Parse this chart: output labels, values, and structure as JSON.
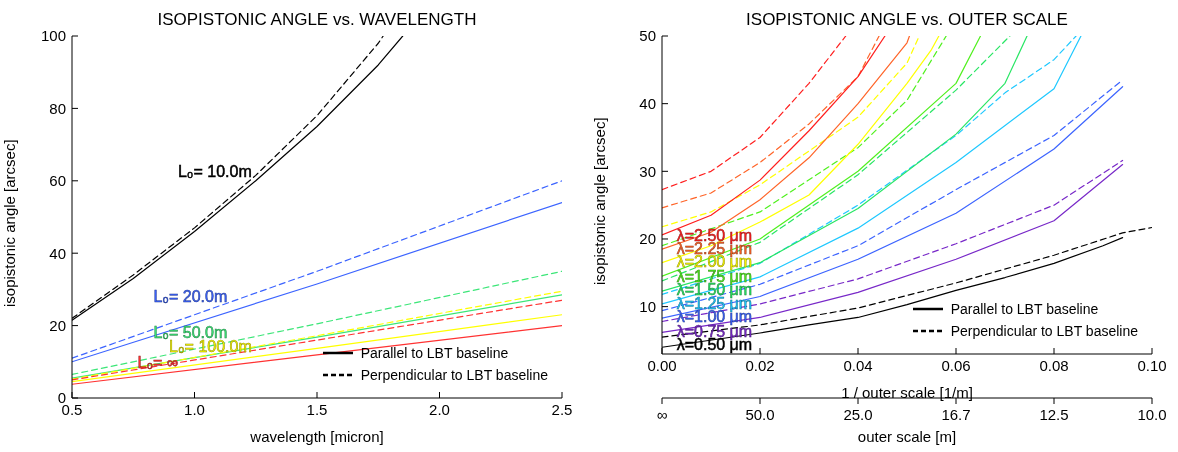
{
  "chart_data": [
    {
      "type": "line",
      "title": "ISOPISTONIC ANGLE vs. WAVELENGTH",
      "xlabel": "wavelength [micron]",
      "ylabel": "isopistonic angle [arcsec]",
      "xlim": [
        0.5,
        2.5
      ],
      "xticks": [
        {
          "value": 0.5,
          "label": "0.5"
        },
        {
          "value": 1,
          "label": "1.0"
        },
        {
          "value": 1.5,
          "label": "1.5"
        },
        {
          "value": 2,
          "label": "2.0"
        },
        {
          "value": 2.5,
          "label": "2.5"
        }
      ],
      "ylim": [
        0,
        100
      ],
      "yticks": [
        0,
        20,
        40,
        60,
        80,
        100
      ],
      "grid": false,
      "series": [
        {
          "color": "#000000",
          "line_style": "solid",
          "x": [
            0.5,
            0.75,
            1.0,
            1.25,
            1.5,
            1.75,
            1.85
          ],
          "values": [
            21.5,
            33,
            46,
            60,
            75,
            92,
            100
          ]
        },
        {
          "color": "#000000",
          "line_style": "dashed",
          "x": [
            0.5,
            0.75,
            1.0,
            1.25,
            1.5,
            1.75,
            1.77
          ],
          "values": [
            22,
            34,
            47,
            61.5,
            78,
            98,
            100
          ]
        },
        {
          "color": "#3c64ff",
          "line_style": "solid",
          "x": [
            0.5,
            1.5,
            2.5
          ],
          "values": [
            10,
            31.5,
            54
          ]
        },
        {
          "color": "#3c64ff",
          "line_style": "dashed",
          "x": [
            0.5,
            1.5,
            2.5
          ],
          "values": [
            11,
            35,
            60
          ]
        },
        {
          "color": "#3ce678",
          "line_style": "solid",
          "x": [
            0.5,
            1.5,
            2.5
          ],
          "values": [
            5.5,
            16.8,
            28.5
          ]
        },
        {
          "color": "#3ce678",
          "line_style": "dashed",
          "x": [
            0.5,
            1.5,
            2.5
          ],
          "values": [
            6.5,
            20.5,
            35
          ]
        },
        {
          "color": "#ffff00",
          "line_style": "solid",
          "x": [
            0.5,
            1.5,
            2.5
          ],
          "values": [
            4.5,
            13.7,
            23
          ]
        },
        {
          "color": "#ffff00",
          "line_style": "dashed",
          "x": [
            0.5,
            1.5,
            2.5
          ],
          "values": [
            5.2,
            17.2,
            29.5
          ]
        },
        {
          "color": "#ff3232",
          "line_style": "solid",
          "x": [
            0.5,
            1.5,
            2.5
          ],
          "values": [
            3.8,
            11.9,
            20
          ]
        },
        {
          "color": "#ff3232",
          "line_style": "dashed",
          "x": [
            0.5,
            1.5,
            2.5
          ],
          "values": [
            5,
            16,
            27
          ]
        }
      ],
      "annotations": [
        {
          "text": "L₀= 10.0m",
          "x": 1.25,
          "y": 60
        },
        {
          "text": "L₀= 20.0m",
          "x": 1.15,
          "y": 25.5
        },
        {
          "text": "L₀= 50.0m",
          "x": 1.15,
          "y": 15.6
        },
        {
          "text": "L₀= 100.0m",
          "x": 1.25,
          "y": 11.6
        },
        {
          "text": "L₀= ∞",
          "x": 0.95,
          "y": 7.2
        },
        "Parallel to LBT baseline",
        "Perpendicular to LBT baseline"
      ]
    },
    {
      "type": "line",
      "title": "ISOPISTONIC ANGLE vs. OUTER SCALE",
      "xlabel": "1 / outer scale [1/m]",
      "ylabel": "isopistonic angle [arcsec]",
      "xlim": [
        0,
        0.1
      ],
      "xticks": [
        {
          "value": 0,
          "label": "0.00"
        },
        {
          "value": 0.02,
          "label": "0.02"
        },
        {
          "value": 0.04,
          "label": "0.04"
        },
        {
          "value": 0.06,
          "label": "0.06"
        },
        {
          "value": 0.08,
          "label": "0.08"
        },
        {
          "value": 0.1,
          "label": "0.10"
        }
      ],
      "x2label": "outer scale [m]",
      "ylim": [
        3,
        50
      ],
      "yticks": [
        10,
        20,
        30,
        40,
        50
      ],
      "grid": false,
      "series": [
        {
          "color": "#000000",
          "line_style": "solid",
          "x": [
            0,
            0.02,
            0.03,
            0.04,
            0.05,
            0.06,
            0.07,
            0.08,
            0.09,
            0.094
          ],
          "values": [
            4,
            6.1,
            7.3,
            8.4,
            10.3,
            12.4,
            14.3,
            16.4,
            19,
            20.2
          ]
        },
        {
          "color": "#000000",
          "line_style": "dashed",
          "x": [
            0,
            0.02,
            0.04,
            0.06,
            0.08,
            0.094,
            0.1
          ],
          "values": [
            5.5,
            7.3,
            9.8,
            13.5,
            17.6,
            20.9,
            21.7
          ]
        },
        {
          "color": "#7828c8",
          "line_style": "solid",
          "x": [
            0,
            0.02,
            0.04,
            0.06,
            0.08,
            0.094
          ],
          "values": [
            6.2,
            8.4,
            12.1,
            17,
            22.7,
            31
          ]
        },
        {
          "color": "#7828c8",
          "line_style": "dashed",
          "x": [
            0,
            0.02,
            0.04,
            0.06,
            0.08,
            0.094
          ],
          "values": [
            7.8,
            10.4,
            14.1,
            19.3,
            25,
            31.6
          ]
        },
        {
          "color": "#3c64ff",
          "line_style": "solid",
          "x": [
            0,
            0.02,
            0.04,
            0.06,
            0.08,
            0.094
          ],
          "values": [
            8.3,
            11.5,
            17,
            23.8,
            33.3,
            42.5
          ]
        },
        {
          "color": "#3c64ff",
          "line_style": "dashed",
          "x": [
            0,
            0.02,
            0.04,
            0.06,
            0.08,
            0.094
          ],
          "values": [
            9.4,
            13.3,
            19,
            27.3,
            35.3,
            43.5
          ]
        },
        {
          "color": "#1ec8ff",
          "line_style": "solid",
          "x": [
            0,
            0.02,
            0.04,
            0.06,
            0.08,
            0.0855
          ],
          "values": [
            10.4,
            14.4,
            21.6,
            31.3,
            42.2,
            50
          ]
        },
        {
          "color": "#1ec8ff",
          "line_style": "dashed",
          "x": [
            0,
            0.02,
            0.04,
            0.06,
            0.07,
            0.08,
            0.0845
          ],
          "values": [
            11.8,
            16.4,
            25,
            35.3,
            41.6,
            46.5,
            50
          ]
        },
        {
          "color": "#28e664",
          "line_style": "solid",
          "x": [
            0,
            0.02,
            0.04,
            0.06,
            0.07,
            0.0745
          ],
          "values": [
            12.3,
            16.5,
            24.5,
            35.5,
            43,
            50
          ]
        },
        {
          "color": "#28e664",
          "line_style": "dashed",
          "x": [
            0,
            0.02,
            0.04,
            0.06,
            0.071
          ],
          "values": [
            13.8,
            19.5,
            29.5,
            42,
            50
          ]
        },
        {
          "color": "#50f01e",
          "line_style": "solid",
          "x": [
            0,
            0.02,
            0.04,
            0.06,
            0.065
          ],
          "values": [
            14.5,
            20,
            30,
            43,
            50
          ]
        },
        {
          "color": "#50f01e",
          "line_style": "dashed",
          "x": [
            0,
            0.02,
            0.04,
            0.05,
            0.058
          ],
          "values": [
            19,
            24,
            33.5,
            40.5,
            50
          ]
        },
        {
          "color": "#ffff00",
          "line_style": "solid",
          "x": [
            0,
            0.01,
            0.02,
            0.03,
            0.04,
            0.05,
            0.055,
            0.0565
          ],
          "values": [
            16.5,
            19,
            22.5,
            26.5,
            34,
            43,
            48,
            50
          ]
        },
        {
          "color": "#ffff00",
          "line_style": "dashed",
          "x": [
            0,
            0.01,
            0.02,
            0.03,
            0.04,
            0.05,
            0.0525
          ],
          "values": [
            21.8,
            24,
            28,
            33,
            38,
            46,
            50
          ]
        },
        {
          "color": "#ff6428",
          "line_style": "solid",
          "x": [
            0,
            0.01,
            0.02,
            0.03,
            0.04,
            0.05,
            0.0505
          ],
          "values": [
            18.5,
            21,
            25.8,
            32,
            40,
            49,
            50
          ]
        },
        {
          "color": "#ff6428",
          "line_style": "dashed",
          "x": [
            0,
            0.01,
            0.02,
            0.03,
            0.04,
            0.0443
          ],
          "values": [
            24.6,
            26.8,
            31.3,
            37,
            44,
            50
          ]
        },
        {
          "color": "#ff1e1e",
          "line_style": "solid",
          "x": [
            0,
            0.01,
            0.02,
            0.03,
            0.04,
            0.0455
          ],
          "values": [
            20.6,
            23.5,
            28.7,
            36,
            44,
            50
          ]
        },
        {
          "color": "#ff1e1e",
          "line_style": "dashed",
          "x": [
            0,
            0.01,
            0.02,
            0.03,
            0.0375
          ],
          "values": [
            27.3,
            30,
            35,
            43,
            50
          ]
        }
      ],
      "annotations": [
        {
          "text": "λ=2.50 μm",
          "x": 0.003,
          "y": 20.5
        },
        {
          "text": "λ=2.25 μm",
          "x": 0.003,
          "y": 18.5
        },
        {
          "text": "λ=2.00 μm",
          "x": 0.003,
          "y": 16.6
        },
        {
          "text": "λ=1.75 μm",
          "x": 0.003,
          "y": 14.4
        },
        {
          "text": "λ=1.50 μm",
          "x": 0.003,
          "y": 12.4
        },
        {
          "text": "λ=1.25 μm",
          "x": 0.003,
          "y": 10.4
        },
        {
          "text": "λ=1.00 μm",
          "x": 0.003,
          "y": 8.4
        },
        {
          "text": "λ=0.75 μm",
          "x": 0.003,
          "y": 6.3
        },
        {
          "text": "λ=0.50 μm",
          "x": 0.003,
          "y": 4.4
        },
        "Parallel to LBT baseline",
        "Perpendicular to LBT baseline",
        "∞",
        "50.0",
        "25.0",
        "16.7",
        "12.5",
        "10.0"
      ]
    }
  ]
}
